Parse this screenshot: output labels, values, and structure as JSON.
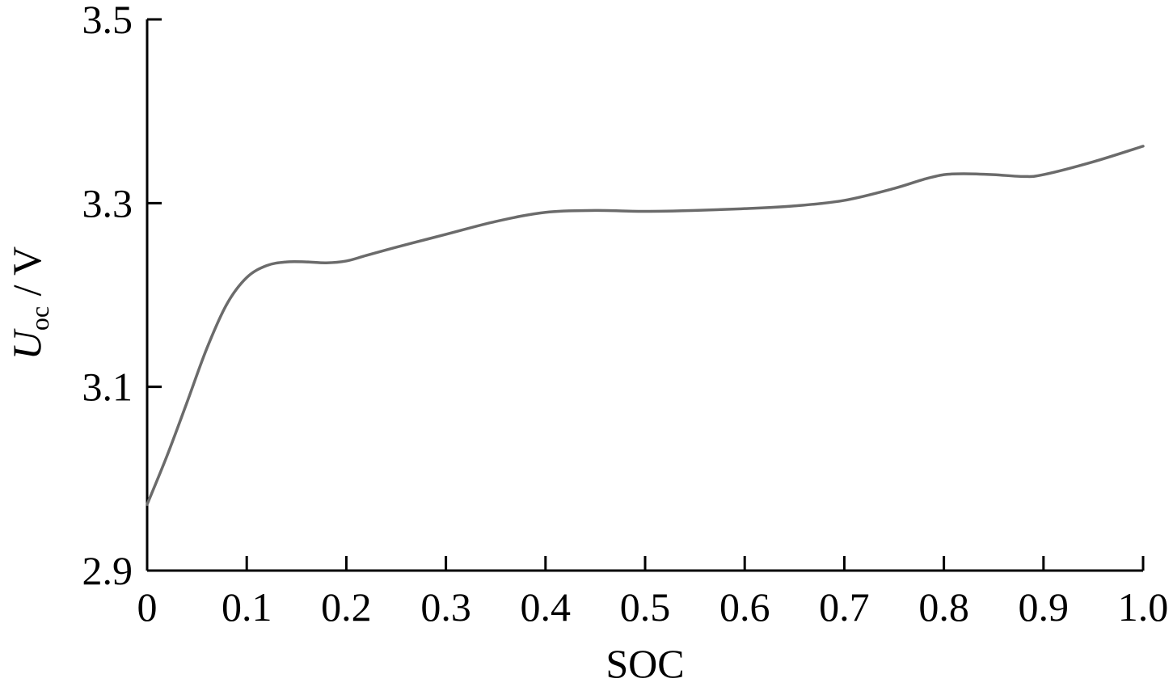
{
  "chart_data": {
    "type": "line",
    "title": "",
    "xlabel": "SOC",
    "ylabel": {
      "main": "U",
      "sub": "oc",
      "unit": " / V"
    },
    "xlim": [
      0,
      1.0
    ],
    "ylim": [
      2.9,
      3.5
    ],
    "x_ticks": [
      0,
      0.1,
      0.2,
      0.3,
      0.4,
      0.5,
      0.6,
      0.7,
      0.8,
      0.9,
      1.0
    ],
    "x_tick_labels": [
      "0",
      "0.1",
      "0.2",
      "0.3",
      "0.4",
      "0.5",
      "0.6",
      "0.7",
      "0.8",
      "0.9",
      "1.0"
    ],
    "y_ticks": [
      2.9,
      3.1,
      3.3,
      3.5
    ],
    "y_tick_labels": [
      "2.9",
      "3.1",
      "3.3",
      "3.5"
    ],
    "grid": false,
    "line_color": "#6b6b6b",
    "series": [
      {
        "x": [
          0,
          0.02,
          0.04,
          0.06,
          0.08,
          0.1,
          0.12,
          0.14,
          0.16,
          0.18,
          0.2,
          0.22,
          0.25,
          0.3,
          0.35,
          0.4,
          0.45,
          0.5,
          0.55,
          0.6,
          0.65,
          0.7,
          0.75,
          0.78,
          0.8,
          0.82,
          0.85,
          0.88,
          0.9,
          0.95,
          1.0
        ],
        "y": [
          2.972,
          3.025,
          3.083,
          3.142,
          3.19,
          3.219,
          3.232,
          3.236,
          3.236,
          3.235,
          3.237,
          3.243,
          3.252,
          3.266,
          3.28,
          3.29,
          3.292,
          3.291,
          3.292,
          3.294,
          3.297,
          3.303,
          3.316,
          3.326,
          3.331,
          3.332,
          3.331,
          3.329,
          3.331,
          3.345,
          3.362
        ]
      }
    ]
  }
}
